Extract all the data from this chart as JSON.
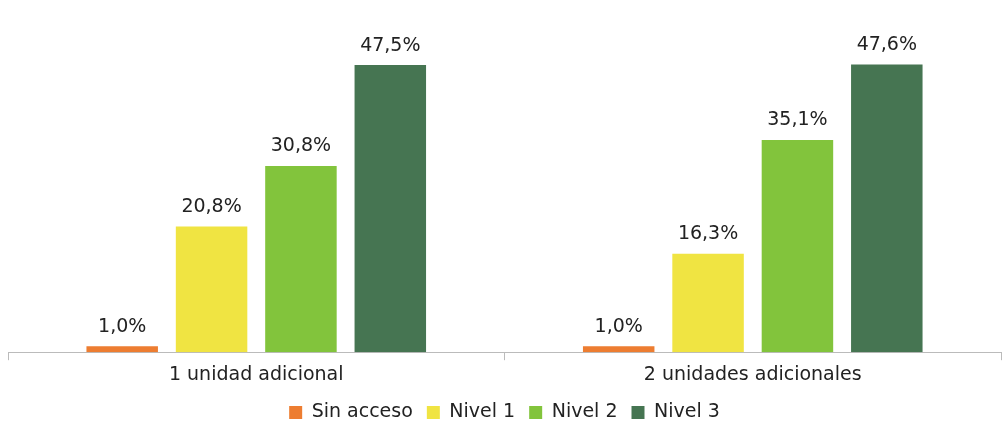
{
  "chart_data": {
    "type": "bar",
    "categories": [
      "1 unidad adicional",
      "2 unidades adicionales"
    ],
    "series": [
      {
        "name": "Sin acceso",
        "color": "#ed7d31",
        "values": [
          1.0,
          1.0
        ],
        "value_labels": [
          "1,0%",
          "1,0%"
        ]
      },
      {
        "name": "Nivel 1",
        "color": "#f0e442",
        "values": [
          20.8,
          16.3
        ],
        "value_labels": [
          "20,8%",
          "16,3%"
        ]
      },
      {
        "name": "Nivel 2",
        "color": "#82c43c",
        "values": [
          30.8,
          35.1
        ],
        "value_labels": [
          "30,8%",
          "35,1%"
        ]
      },
      {
        "name": "Nivel 3",
        "color": "#467552",
        "values": [
          47.5,
          47.6
        ],
        "value_labels": [
          "47,5%",
          "47,6%"
        ]
      }
    ],
    "legend": "bottom",
    "grid": false
  }
}
